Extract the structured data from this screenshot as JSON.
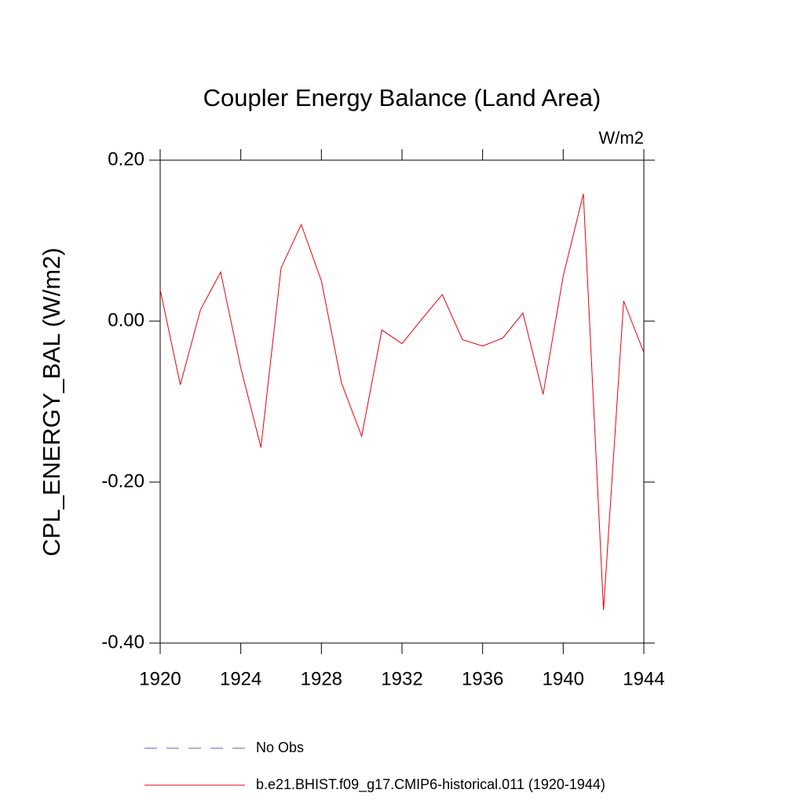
{
  "chart_data": {
    "type": "line",
    "title": "Coupler Energy Balance (Land Area)",
    "units": "W/m2",
    "y_label": "CPL_ENERGY_BAL  (W/m2)",
    "x": [
      1920,
      1921,
      1922,
      1923,
      1924,
      1925,
      1926,
      1927,
      1928,
      1929,
      1930,
      1931,
      1932,
      1933,
      1934,
      1935,
      1936,
      1937,
      1938,
      1939,
      1940,
      1941,
      1942,
      1943,
      1944
    ],
    "series": [
      {
        "name": "No Obs",
        "color": "#6a5acd",
        "dash": "dashed",
        "values": [
          null,
          null,
          null,
          null,
          null,
          null,
          null,
          null,
          null,
          null,
          null,
          null,
          null,
          null,
          null,
          null,
          null,
          null,
          null,
          null,
          null,
          null,
          null,
          null,
          null
        ]
      },
      {
        "name": "b.e21.BHIST.f09_g17.CMIP6-historical.011 (1920-1944)",
        "color": "#e8000b",
        "dash": "solid",
        "values": [
          0.039,
          -0.079,
          0.014,
          0.061,
          -0.058,
          -0.157,
          0.066,
          0.12,
          0.05,
          -0.077,
          -0.143,
          -0.011,
          -0.028,
          0.003,
          0.033,
          -0.023,
          -0.031,
          -0.021,
          0.01,
          -0.091,
          0.056,
          0.158,
          -0.359,
          0.025,
          -0.039
        ]
      }
    ],
    "xlim": [
      1920,
      1944
    ],
    "xticks": [
      1920,
      1924,
      1928,
      1932,
      1936,
      1940,
      1944
    ],
    "ylim": [
      -0.4,
      0.2
    ],
    "yticks": [
      {
        "value": 0.2,
        "label": "0.20"
      },
      {
        "value": 0,
        "label": "0.00"
      },
      {
        "value": -0.2,
        "label": "-0.20"
      },
      {
        "value": -0.4,
        "label": "-0.40"
      }
    ],
    "grid": false
  }
}
